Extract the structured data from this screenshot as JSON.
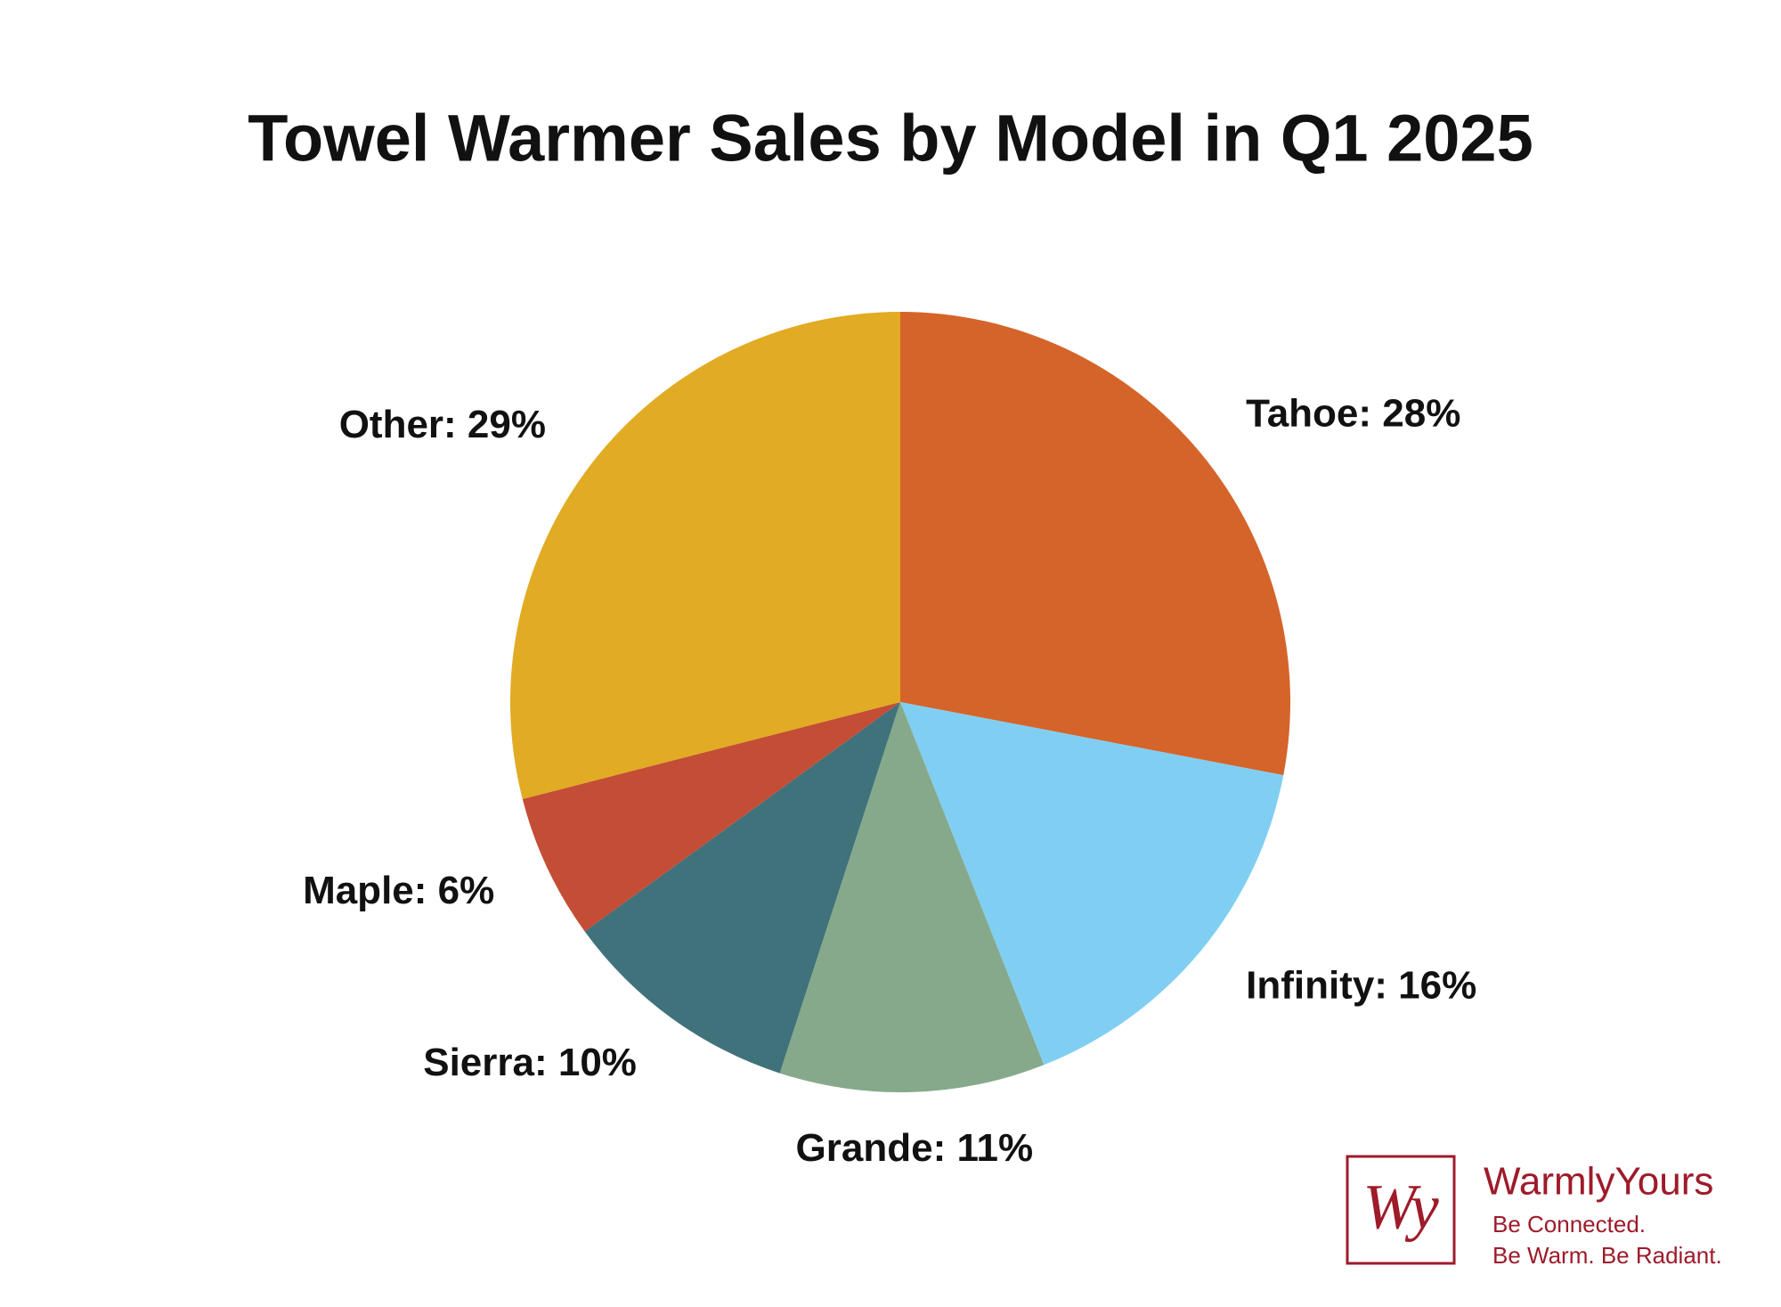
{
  "chart_data": {
    "type": "pie",
    "title": "Towel Warmer Sales by Model in Q1 2025",
    "values": [
      28,
      16,
      11,
      10,
      6,
      29
    ],
    "value_labels": [
      "Tahoe: 28%",
      "Infinity: 16%",
      "Grande: 11%",
      "Sierra: 10%",
      "Maple: 6%",
      "Other: 29%"
    ],
    "colors": [
      "#d5642a",
      "#80cff2",
      "#86a98b",
      "#40727b",
      "#c44d36",
      "#e1ab24"
    ]
  },
  "logo": {
    "monogram": "Wy",
    "brand": "WarmlyYours",
    "tagline_1": "Be Connected.",
    "tagline_2": "Be Warm. Be Radiant."
  }
}
